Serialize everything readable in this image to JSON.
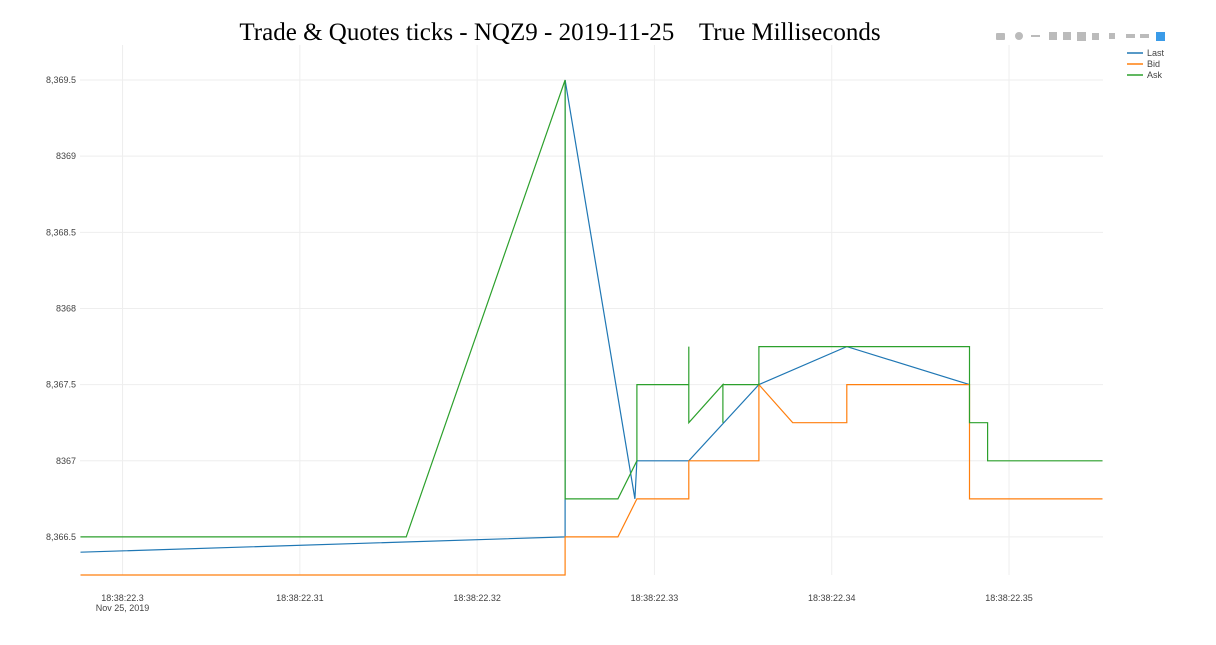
{
  "chart_data": {
    "type": "line",
    "title": "Trade & Quotes ticks - NQZ9 - 2019-11-25    True Milliseconds",
    "x_date_label": "Nov 25, 2019",
    "series": [
      {
        "name": "Last",
        "color": "#1f77b4",
        "x": [
          0.29763,
          0.32496,
          0.32496,
          0.3289,
          0.32901,
          0.33194,
          0.33589,
          0.34085,
          0.34777
        ],
        "values": [
          8366.4,
          8366.5,
          8369.5,
          8366.75,
          8367,
          8367,
          8367.5,
          8367.75,
          8367.5
        ]
      },
      {
        "name": "Bid",
        "color": "#ff7f0e",
        "x": [
          0.29763,
          0.32496,
          0.32496,
          0.32794,
          0.32901,
          0.33194,
          0.33194,
          0.33589,
          0.33589,
          0.3378,
          0.34085,
          0.34085,
          0.34777,
          0.34777,
          0.35527
        ],
        "values": [
          8366.25,
          8366.25,
          8366.5,
          8366.5,
          8366.75,
          8366.75,
          8367,
          8367,
          8367.5,
          8367.25,
          8367.25,
          8367.5,
          8367.5,
          8366.75,
          8366.75
        ]
      },
      {
        "name": "Ask",
        "color": "#2ca02c",
        "x": [
          0.29763,
          0.316,
          0.32496,
          0.32496,
          0.32794,
          0.32901,
          0.32901,
          0.33194,
          0.33194,
          0.33194,
          0.33386,
          0.33386,
          0.33386,
          0.33589,
          0.33589,
          0.34777,
          0.34777,
          0.34879,
          0.34879,
          0.35527
        ],
        "values": [
          8366.5,
          8366.5,
          8369.5,
          8366.75,
          8366.75,
          8367,
          8367.5,
          8367.5,
          8367.75,
          8367.25,
          8367.5,
          8367.25,
          8367.5,
          8367.5,
          8367.75,
          8367.75,
          8367.25,
          8367.25,
          8367,
          8367
        ]
      }
    ],
    "xlim": [
      0.2976,
      0.3553
    ],
    "xticks": [
      {
        "value": 0.3,
        "label": "18:38:22.3"
      },
      {
        "value": 0.31,
        "label": "18:38:22.31"
      },
      {
        "value": 0.32,
        "label": "18:38:22.32"
      },
      {
        "value": 0.33,
        "label": "18:38:22.33"
      },
      {
        "value": 0.34,
        "label": "18:38:22.34"
      },
      {
        "value": 0.35,
        "label": "18:38:22.35"
      }
    ],
    "ylim": [
      8366.25,
      8369.73
    ],
    "yticks": [
      {
        "value": 8366.5,
        "label": "8,366.5"
      },
      8367,
      {
        "value": 8367.5,
        "label": "8,367.5"
      },
      8368,
      {
        "value": 8368.5,
        "label": "8,368.5"
      },
      8369,
      {
        "value": 8369.5,
        "label": "8,369.5"
      }
    ],
    "grid": true
  }
}
